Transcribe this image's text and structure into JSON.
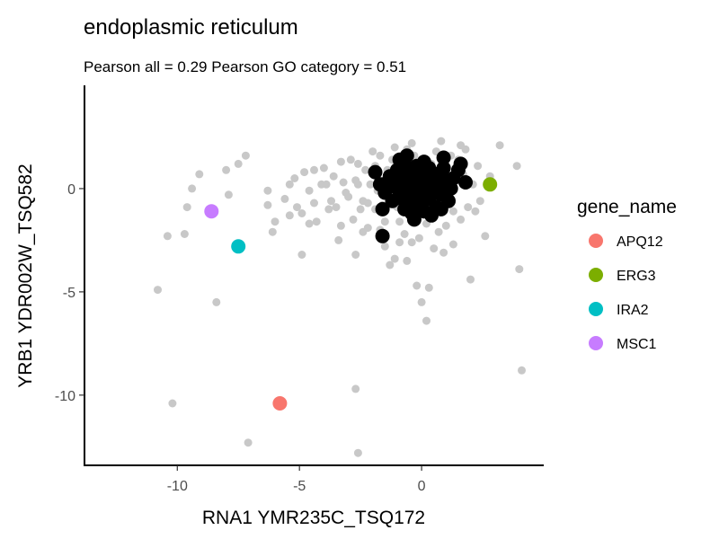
{
  "chart_data": {
    "type": "scatter",
    "title": "endoplasmic reticulum",
    "subtitle": "Pearson all =  0.29 Pearson GO category =  0.51",
    "xlabel": "RNA1 YMR235C_TSQ172",
    "ylabel": "YRB1 YDR002W_TSQ582",
    "xlim": [
      -13.8,
      5.0
    ],
    "ylim": [
      -13.4,
      5.0
    ],
    "x_ticks": [
      -10,
      -5,
      0
    ],
    "x_tick_labels": [
      "-10",
      "-5",
      "0"
    ],
    "y_ticks": [
      -10,
      -5,
      0
    ],
    "y_tick_labels": [
      "-10",
      "-5",
      "0"
    ],
    "grid": false,
    "legend_position": "right",
    "colors": {
      "background_points": "#c8c8c8",
      "category_points": "#000000",
      "APQ12": "#f8766d",
      "ERG3": "#7cae00",
      "IRA2": "#00bfc4",
      "MSC1": "#c77cff"
    },
    "legend": {
      "title": "gene_name",
      "items": [
        {
          "name": "APQ12",
          "color": "#f8766d"
        },
        {
          "name": "ERG3",
          "color": "#7cae00"
        },
        {
          "name": "IRA2",
          "color": "#00bfc4"
        },
        {
          "name": "MSC1",
          "color": "#c77cff"
        }
      ]
    },
    "series": [
      {
        "role": "all-genes",
        "color": "#c8c8c8",
        "points": [
          [
            -10.8,
            -4.9
          ],
          [
            -10.4,
            -2.3
          ],
          [
            -9.7,
            -2.2
          ],
          [
            -9.6,
            -0.9
          ],
          [
            -9.4,
            0.0
          ],
          [
            -9.1,
            0.7
          ],
          [
            -8.0,
            0.9
          ],
          [
            -8.4,
            -5.5
          ],
          [
            -7.9,
            -0.3
          ],
          [
            -7.5,
            1.2
          ],
          [
            -7.2,
            1.6
          ],
          [
            -10.2,
            -10.4
          ],
          [
            -7.1,
            -12.3
          ],
          [
            -6.3,
            -0.1
          ],
          [
            -6.3,
            -0.8
          ],
          [
            -6.0,
            -1.6
          ],
          [
            -6.1,
            -2.1
          ],
          [
            -5.6,
            -0.5
          ],
          [
            -5.4,
            0.2
          ],
          [
            -5.2,
            0.5
          ],
          [
            -5.1,
            -0.9
          ],
          [
            -4.9,
            -1.2
          ],
          [
            -4.8,
            0.8
          ],
          [
            -4.6,
            -0.1
          ],
          [
            -4.6,
            -1.7
          ],
          [
            -4.9,
            -3.2
          ],
          [
            -4.4,
            0.9
          ],
          [
            -4.3,
            -1.6
          ],
          [
            -4.1,
            0.2
          ],
          [
            -4.0,
            1.0
          ],
          [
            -3.9,
            0.2
          ],
          [
            -3.8,
            -1.0
          ],
          [
            -3.6,
            0.6
          ],
          [
            -3.5,
            -0.9
          ],
          [
            -3.4,
            -2.5
          ],
          [
            -3.3,
            1.3
          ],
          [
            -3.2,
            0.3
          ],
          [
            -3.0,
            -0.4
          ],
          [
            -2.9,
            1.4
          ],
          [
            -2.8,
            -1.5
          ],
          [
            -2.7,
            0.4
          ],
          [
            -2.7,
            -3.2
          ],
          [
            -2.6,
            0.2
          ],
          [
            -2.6,
            1.2
          ],
          [
            -2.5,
            -1.0
          ],
          [
            -2.4,
            -0.6
          ],
          [
            -2.3,
            0.9
          ],
          [
            -2.2,
            -1.9
          ],
          [
            -2.1,
            0.2
          ],
          [
            -2.0,
            1.8
          ],
          [
            -1.9,
            -1.0
          ],
          [
            -1.8,
            0.5
          ],
          [
            -1.7,
            1.6
          ],
          [
            -1.7,
            -2.0
          ],
          [
            -1.6,
            -0.8
          ],
          [
            -1.5,
            -1.6
          ],
          [
            -1.4,
            0.9
          ],
          [
            -1.3,
            -3.7
          ],
          [
            -1.2,
            -0.3
          ],
          [
            -1.1,
            2.0
          ],
          [
            -1.1,
            -3.4
          ],
          [
            -1.0,
            -0.9
          ],
          [
            -1.0,
            1.2
          ],
          [
            -0.9,
            -1.6
          ],
          [
            -0.9,
            -2.6
          ],
          [
            -0.8,
            0.4
          ],
          [
            -0.7,
            -2.2
          ],
          [
            -0.6,
            -3.5
          ],
          [
            -0.6,
            1.9
          ],
          [
            -0.5,
            -1.2
          ],
          [
            -0.4,
            -2.6
          ],
          [
            -0.3,
            1.6
          ],
          [
            -0.3,
            -0.6
          ],
          [
            -0.2,
            -4.7
          ],
          [
            -0.1,
            -2.4
          ],
          [
            0.0,
            -5.5
          ],
          [
            0.1,
            -1.2
          ],
          [
            0.2,
            -6.4
          ],
          [
            0.3,
            -4.8
          ],
          [
            0.4,
            1.2
          ],
          [
            0.5,
            -2.9
          ],
          [
            0.6,
            -0.5
          ],
          [
            0.7,
            -2.1
          ],
          [
            0.8,
            2.3
          ],
          [
            0.9,
            1.0
          ],
          [
            1.0,
            -1.8
          ],
          [
            1.1,
            -0.4
          ],
          [
            1.2,
            1.6
          ],
          [
            1.3,
            -2.7
          ],
          [
            1.4,
            0.4
          ],
          [
            1.5,
            1.4
          ],
          [
            1.6,
            -1.5
          ],
          [
            1.7,
            0.7
          ],
          [
            1.8,
            1.9
          ],
          [
            1.9,
            -0.9
          ],
          [
            2.0,
            -4.4
          ],
          [
            2.1,
            0.2
          ],
          [
            2.3,
            1.1
          ],
          [
            2.4,
            -0.6
          ],
          [
            2.6,
            -2.3
          ],
          [
            3.2,
            2.1
          ],
          [
            3.9,
            1.1
          ],
          [
            4.0,
            -3.9
          ],
          [
            4.1,
            -8.8
          ],
          [
            -2.7,
            -9.7
          ],
          [
            -2.6,
            -12.8
          ],
          [
            -0.7,
            -0.3
          ],
          [
            0.2,
            -1.7
          ],
          [
            -1.2,
            1.4
          ],
          [
            0.9,
            -3.1
          ],
          [
            -3.1,
            -0.2
          ],
          [
            -2.4,
            -2.1
          ],
          [
            -1.9,
            1.1
          ],
          [
            1.6,
            2.1
          ],
          [
            2.2,
            -1.1
          ],
          [
            -0.4,
            2.2
          ],
          [
            -1.5,
            -2.8
          ],
          [
            0.6,
            1.8
          ],
          [
            -3.7,
            -0.6
          ],
          [
            -4.4,
            -0.7
          ],
          [
            -2.2,
            -0.7
          ],
          [
            -1.3,
            0.6
          ],
          [
            -0.7,
            1.1
          ],
          [
            1.3,
            -1.1
          ],
          [
            0.4,
            -1.3
          ],
          [
            -1.8,
            -0.1
          ],
          [
            0.1,
            0.9
          ],
          [
            2.8,
            0.6
          ],
          [
            -5.4,
            -1.3
          ],
          [
            -3.3,
            -1.8
          ]
        ]
      },
      {
        "role": "go-category",
        "color": "#000000",
        "points": [
          [
            -1.9,
            0.8
          ],
          [
            -1.7,
            0.2
          ],
          [
            -1.5,
            -0.2
          ],
          [
            -1.3,
            0.6
          ],
          [
            -1.6,
            -1.0
          ],
          [
            -1.2,
            -0.6
          ],
          [
            -1.1,
            0.1
          ],
          [
            -1.0,
            0.9
          ],
          [
            -0.9,
            -0.3
          ],
          [
            -0.8,
            0.5
          ],
          [
            -0.7,
            -1.0
          ],
          [
            -0.7,
            1.2
          ],
          [
            -0.6,
            0.0
          ],
          [
            -0.5,
            -0.7
          ],
          [
            -0.5,
            0.8
          ],
          [
            -0.4,
            0.3
          ],
          [
            -0.4,
            -1.2
          ],
          [
            -0.3,
            -0.4
          ],
          [
            -0.2,
            1.1
          ],
          [
            -0.2,
            0.2
          ],
          [
            -0.1,
            -0.8
          ],
          [
            0.0,
            0.6
          ],
          [
            0.0,
            -0.2
          ],
          [
            0.1,
            -1.1
          ],
          [
            0.1,
            1.3
          ],
          [
            0.2,
            0.1
          ],
          [
            0.3,
            -0.5
          ],
          [
            0.3,
            0.9
          ],
          [
            0.4,
            -1.3
          ],
          [
            0.4,
            0.4
          ],
          [
            0.5,
            -0.1
          ],
          [
            0.6,
            0.7
          ],
          [
            0.6,
            -0.9
          ],
          [
            0.7,
            0.2
          ],
          [
            0.8,
            -0.3
          ],
          [
            0.9,
            1.0
          ],
          [
            1.0,
            0.4
          ],
          [
            1.1,
            -0.6
          ],
          [
            1.2,
            0.0
          ],
          [
            1.5,
            0.9
          ],
          [
            1.6,
            1.2
          ],
          [
            1.8,
            0.3
          ],
          [
            0.9,
            1.5
          ],
          [
            -1.6,
            -2.3
          ],
          [
            -0.6,
            1.6
          ],
          [
            0.3,
            1.0
          ],
          [
            -0.9,
            1.4
          ],
          [
            1.3,
            0.5
          ],
          [
            -0.3,
            -1.5
          ],
          [
            0.8,
            -1.0
          ],
          [
            -1.4,
            0.3
          ],
          [
            0.5,
            0.2
          ],
          [
            -0.8,
            -0.5
          ],
          [
            0.2,
            0.6
          ]
        ]
      },
      {
        "name": "APQ12",
        "color": "#f8766d",
        "points": [
          [
            -5.8,
            -10.4
          ]
        ]
      },
      {
        "name": "ERG3",
        "color": "#7cae00",
        "points": [
          [
            2.8,
            0.2
          ]
        ]
      },
      {
        "name": "IRA2",
        "color": "#00bfc4",
        "points": [
          [
            -7.5,
            -2.8
          ]
        ]
      },
      {
        "name": "MSC1",
        "color": "#c77cff",
        "points": [
          [
            -8.6,
            -1.1
          ]
        ]
      }
    ]
  }
}
